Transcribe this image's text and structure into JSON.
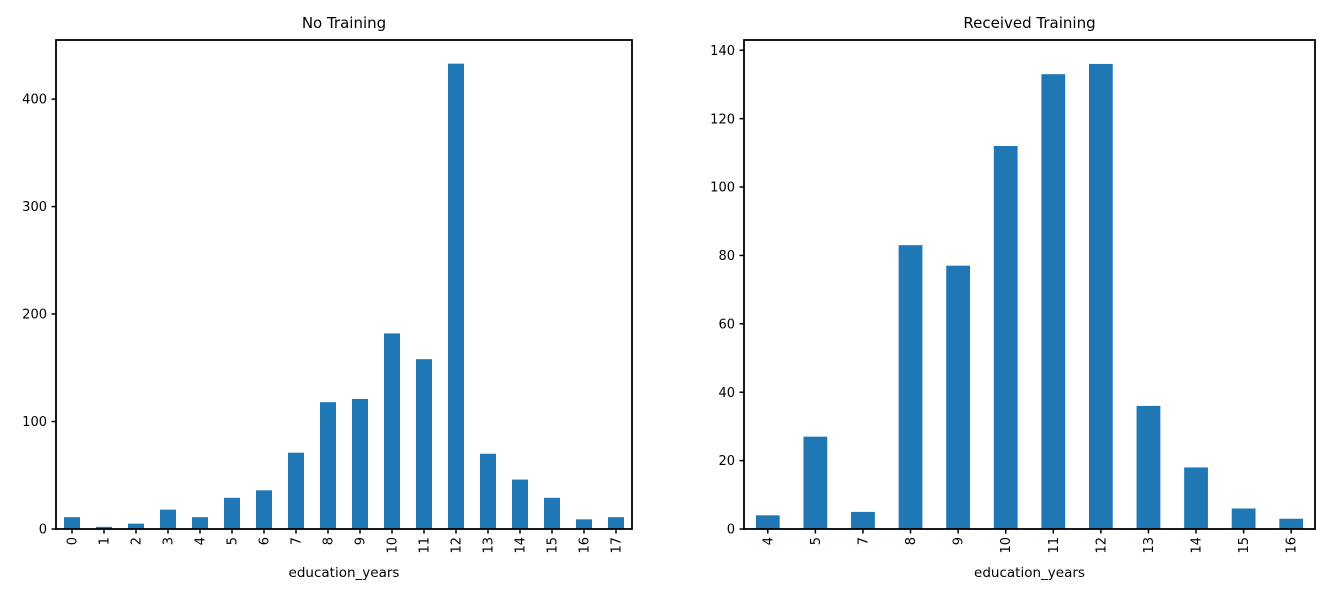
{
  "figure": {
    "background": "#ffffff",
    "bar_color": "#1f77b4",
    "axis_color": "#000000",
    "text_color": "#000000"
  },
  "chart_data": [
    {
      "type": "bar",
      "title": "No Training",
      "xlabel": "education_years",
      "ylabel": "",
      "categories": [
        "0",
        "1",
        "2",
        "3",
        "4",
        "5",
        "6",
        "7",
        "8",
        "9",
        "10",
        "11",
        "12",
        "13",
        "14",
        "15",
        "16",
        "17"
      ],
      "values": [
        11,
        2,
        5,
        18,
        11,
        29,
        36,
        71,
        118,
        121,
        182,
        158,
        433,
        70,
        46,
        29,
        9,
        11
      ],
      "ylim": [
        0,
        455
      ],
      "yticks": [
        0,
        100,
        200,
        300,
        400
      ],
      "bar_width_ratio": 0.5,
      "grid": false,
      "legend": "none",
      "x_tick_rotation": 90
    },
    {
      "type": "bar",
      "title": "Received Training",
      "xlabel": "education_years",
      "ylabel": "",
      "categories": [
        "4",
        "5",
        "7",
        "8",
        "9",
        "10",
        "11",
        "12",
        "13",
        "14",
        "15",
        "16"
      ],
      "values": [
        4,
        27,
        5,
        83,
        77,
        112,
        133,
        136,
        36,
        18,
        6,
        3
      ],
      "ylim": [
        0,
        143
      ],
      "yticks": [
        0,
        20,
        40,
        60,
        80,
        100,
        120,
        140
      ],
      "bar_width_ratio": 0.5,
      "grid": false,
      "legend": "none",
      "x_tick_rotation": 90
    }
  ]
}
